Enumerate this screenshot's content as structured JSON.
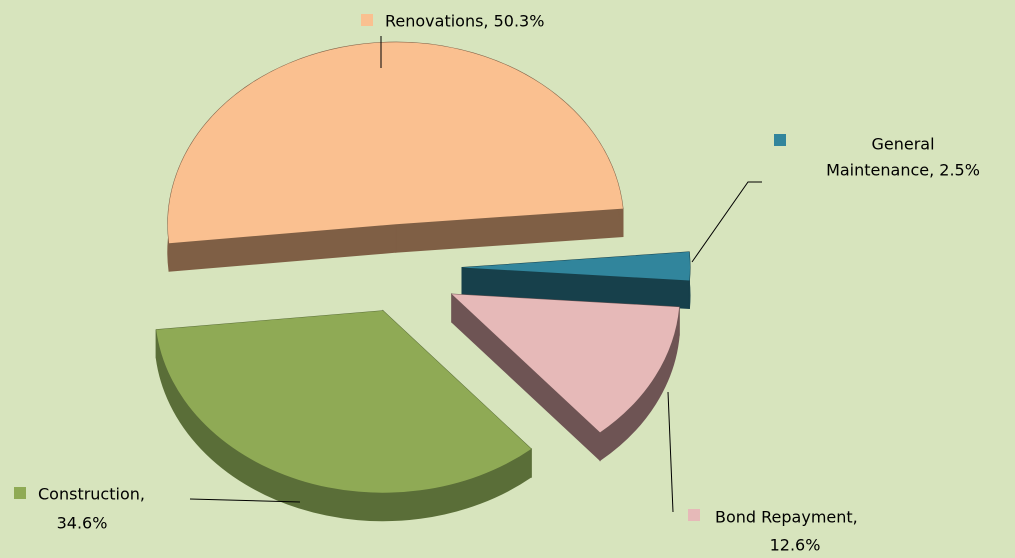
{
  "chart_data": {
    "type": "pie3d",
    "values": [
      50.3,
      2.5,
      12.6,
      34.6
    ],
    "value_labels": [
      [
        "Renovations, 50.3%"
      ],
      [
        "General",
        "Maintenance, 2.5%"
      ],
      [
        "Bond Repayment,",
        "12.6%"
      ],
      [
        "Construction,",
        "34.6%"
      ]
    ],
    "colors": [
      "#fac090",
      "#31859c",
      "#e6b9b8",
      "#8faa55"
    ],
    "side_colors": [
      "#7f5f45",
      "#17404b",
      "#6e5454",
      "#5a6e38"
    ]
  }
}
